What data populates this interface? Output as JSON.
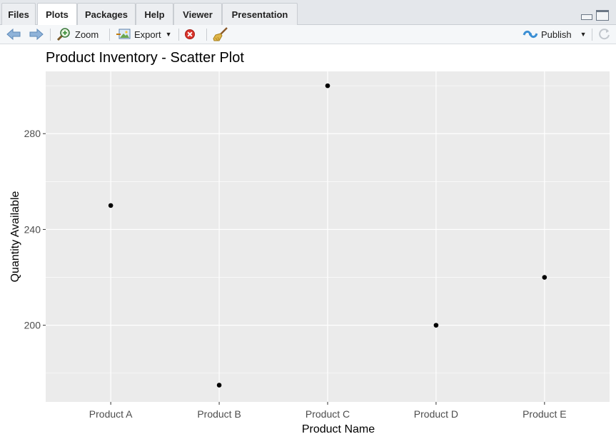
{
  "tabs": [
    {
      "label": "Files",
      "active": false
    },
    {
      "label": "Plots",
      "active": true
    },
    {
      "label": "Packages",
      "active": false
    },
    {
      "label": "Help",
      "active": false
    },
    {
      "label": "Viewer",
      "active": false
    },
    {
      "label": "Presentation",
      "active": false
    }
  ],
  "toolbar": {
    "zoom_label": "Zoom",
    "export_label": "Export",
    "publish_label": "Publish"
  },
  "chart_data": {
    "type": "scatter",
    "title": "Product Inventory - Scatter Plot",
    "xlabel": "Product Name",
    "ylabel": "Quantity Available",
    "categories": [
      "Product A",
      "Product B",
      "Product C",
      "Product D",
      "Product E"
    ],
    "values": [
      250,
      175,
      300,
      200,
      220
    ],
    "ylim": [
      168,
      306
    ],
    "yticks": [
      200,
      240,
      280
    ],
    "grid": true,
    "point_color": "#000000",
    "panel_color": "#ebebeb",
    "grid_color": "#ffffff"
  }
}
